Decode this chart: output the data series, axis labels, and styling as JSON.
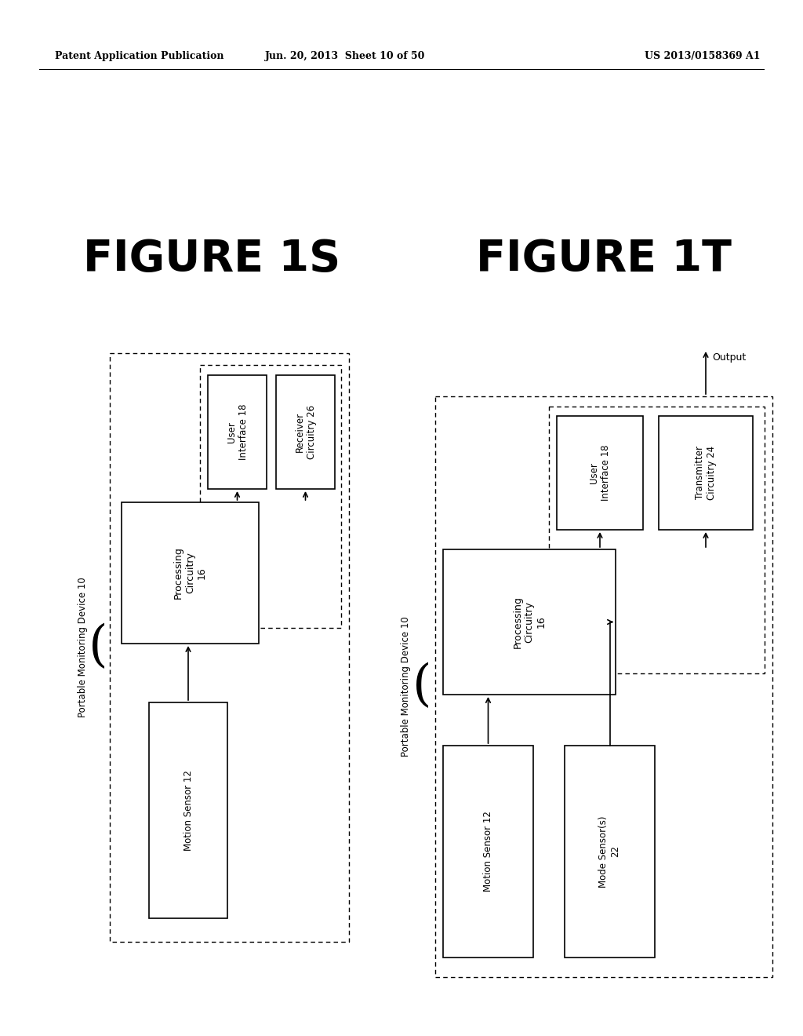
{
  "background_color": "#ffffff",
  "header_left": "Patent Application Publication",
  "header_mid": "Jun. 20, 2013  Sheet 10 of 50",
  "header_right": "US 2013/0158369 A1",
  "fig1s_title": "FIGURE 1S",
  "fig1t_title": "FIGURE 1T"
}
